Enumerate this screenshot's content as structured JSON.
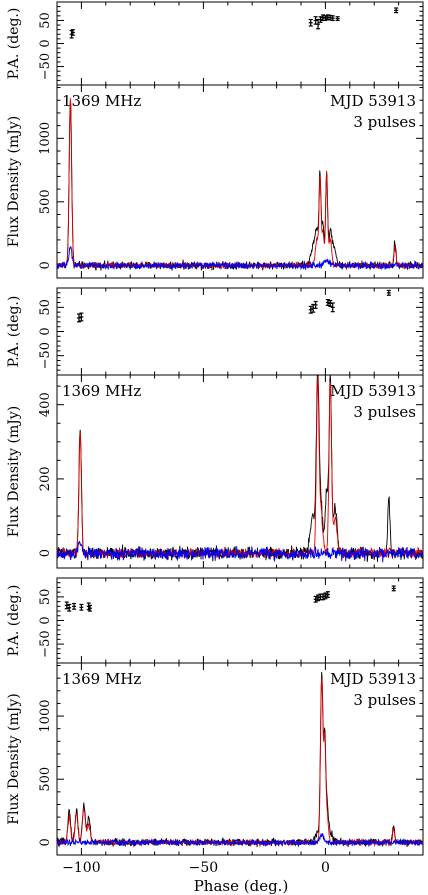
{
  "chart_data": {
    "type": "line",
    "xlabel": "Phase (deg.)",
    "xlim": [
      -110,
      40
    ],
    "x_ticks": [
      -100,
      -50,
      0
    ],
    "series_colors": {
      "total": "#000000",
      "linear": "#e00000",
      "circular": "#0000ee"
    },
    "panels": [
      {
        "freq_label": "1369 MHz",
        "mjd_label": "MJD 53913",
        "pulses_label": "3 pulses",
        "pa": {
          "ylabel": "P.A. (deg.)",
          "ylim": [
            -90,
            90
          ],
          "y_ticks": [
            -50,
            0,
            50
          ],
          "points": [
            {
              "x": -104,
              "y": 20,
              "err": 8
            },
            {
              "x": -103.5,
              "y": 24,
              "err": 6
            },
            {
              "x": -6,
              "y": 45,
              "err": 7
            },
            {
              "x": -4,
              "y": 50,
              "err": 8
            },
            {
              "x": -3,
              "y": 42,
              "err": 10
            },
            {
              "x": -2,
              "y": 52,
              "err": 6
            },
            {
              "x": -1,
              "y": 56,
              "err": 6
            },
            {
              "x": 0,
              "y": 55,
              "err": 5
            },
            {
              "x": 1,
              "y": 57,
              "err": 5
            },
            {
              "x": 2,
              "y": 56,
              "err": 5
            },
            {
              "x": 3,
              "y": 55,
              "err": 5
            },
            {
              "x": 5,
              "y": 54,
              "err": 4
            },
            {
              "x": 29,
              "y": 72,
              "err": 5
            }
          ]
        },
        "flux": {
          "ylabel": "Flux Density (mJy)",
          "ylim": [
            -100,
            1420
          ],
          "y_ticks": [
            0,
            500,
            1000
          ],
          "total": [
            {
              "x": -104.5,
              "y": 1330,
              "w": 0.5
            },
            {
              "x": -5,
              "y": 150,
              "w": 1.0
            },
            {
              "x": -3.5,
              "y": 250,
              "w": 0.6
            },
            {
              "x": -2.2,
              "y": 700,
              "w": 0.4
            },
            {
              "x": -1.0,
              "y": 320,
              "w": 0.5
            },
            {
              "x": 0.5,
              "y": 720,
              "w": 0.4
            },
            {
              "x": 2.0,
              "y": 250,
              "w": 0.6
            },
            {
              "x": 3.5,
              "y": 150,
              "w": 0.8
            },
            {
              "x": 28.5,
              "y": 190,
              "w": 0.4
            }
          ],
          "linear": [
            {
              "x": -104.5,
              "y": 1320,
              "w": 0.5
            },
            {
              "x": -3.5,
              "y": 200,
              "w": 0.6
            },
            {
              "x": -2.2,
              "y": 680,
              "w": 0.4
            },
            {
              "x": -1.0,
              "y": 250,
              "w": 0.5
            },
            {
              "x": 0.5,
              "y": 730,
              "w": 0.4
            },
            {
              "x": 2.0,
              "y": 200,
              "w": 0.6
            },
            {
              "x": 28.5,
              "y": 150,
              "w": 0.4
            }
          ],
          "circular": [
            {
              "x": -104.5,
              "y": 150,
              "w": 0.6
            },
            {
              "x": 0.5,
              "y": 40,
              "w": 1.0
            }
          ],
          "noise": [
            25,
            18,
            22
          ]
        }
      },
      {
        "freq_label": "1369 MHz",
        "mjd_label": "MJD 53913",
        "pulses_label": "3 pulses",
        "pa": {
          "ylabel": "P.A. (deg.)",
          "ylim": [
            -90,
            90
          ],
          "y_ticks": [
            -50,
            0,
            50
          ],
          "points": [
            {
              "x": -101,
              "y": 28,
              "err": 8
            },
            {
              "x": -100,
              "y": 30,
              "err": 8
            },
            {
              "x": -6,
              "y": 45,
              "err": 7
            },
            {
              "x": -5,
              "y": 48,
              "err": 8
            },
            {
              "x": -4,
              "y": 55,
              "err": 7
            },
            {
              "x": 1,
              "y": 60,
              "err": 6
            },
            {
              "x": 2,
              "y": 58,
              "err": 6
            },
            {
              "x": 3,
              "y": 50,
              "err": 9
            },
            {
              "x": 26,
              "y": 80,
              "err": 5
            }
          ]
        },
        "flux": {
          "ylabel": "Flux Density (mJy)",
          "ylim": [
            -40,
            480
          ],
          "y_ticks": [
            0,
            200,
            400
          ],
          "total": [
            {
              "x": -100.5,
              "y": 340,
              "w": 0.5
            },
            {
              "x": -5,
              "y": 100,
              "w": 1.2
            },
            {
              "x": -3.2,
              "y": 440,
              "w": 0.5
            },
            {
              "x": -2,
              "y": 150,
              "w": 0.8
            },
            {
              "x": 0.5,
              "y": 160,
              "w": 0.6
            },
            {
              "x": 2.0,
              "y": 460,
              "w": 0.5
            },
            {
              "x": 4,
              "y": 120,
              "w": 0.8
            },
            {
              "x": 26,
              "y": 160,
              "w": 0.4
            }
          ],
          "linear": [
            {
              "x": -100.5,
              "y": 330,
              "w": 0.5
            },
            {
              "x": -3.2,
              "y": 430,
              "w": 0.5
            },
            {
              "x": -2,
              "y": 120,
              "w": 0.8
            },
            {
              "x": 2.0,
              "y": 465,
              "w": 0.5
            },
            {
              "x": 4,
              "y": 90,
              "w": 0.8
            }
          ],
          "circular": [
            {
              "x": -100.5,
              "y": 30,
              "w": 0.8
            }
          ],
          "noise": [
            14,
            10,
            14
          ]
        }
      },
      {
        "freq_label": "1369 MHz",
        "mjd_label": "MJD 53913",
        "pulses_label": "3 pulses",
        "pa": {
          "ylabel": "P.A. (deg.)",
          "ylim": [
            -90,
            90
          ],
          "y_ticks": [
            -50,
            0,
            50
          ],
          "points": [
            {
              "x": -106,
              "y": 32,
              "err": 7
            },
            {
              "x": -105,
              "y": 27,
              "err": 7
            },
            {
              "x": -103,
              "y": 30,
              "err": 6
            },
            {
              "x": -100,
              "y": 28,
              "err": 6
            },
            {
              "x": -97,
              "y": 30,
              "err": 7
            },
            {
              "x": -96.5,
              "y": 26,
              "err": 6
            },
            {
              "x": -4,
              "y": 45,
              "err": 6
            },
            {
              "x": -3,
              "y": 48,
              "err": 6
            },
            {
              "x": -2,
              "y": 50,
              "err": 6
            },
            {
              "x": -1,
              "y": 50,
              "err": 6
            },
            {
              "x": 0,
              "y": 52,
              "err": 6
            },
            {
              "x": 1,
              "y": 55,
              "err": 6
            },
            {
              "x": 28,
              "y": 68,
              "err": 5
            }
          ]
        },
        "flux": {
          "ylabel": "Flux Density (mJy)",
          "ylim": [
            -100,
            1420
          ],
          "y_ticks": [
            0,
            500,
            1000
          ],
          "total": [
            {
              "x": -105,
              "y": 250,
              "w": 0.6
            },
            {
              "x": -102,
              "y": 250,
              "w": 0.6
            },
            {
              "x": -99,
              "y": 290,
              "w": 0.6
            },
            {
              "x": -97,
              "y": 200,
              "w": 0.6
            },
            {
              "x": -3,
              "y": 80,
              "w": 1.2
            },
            {
              "x": -1.5,
              "y": 1300,
              "w": 0.5
            },
            {
              "x": -0.3,
              "y": 700,
              "w": 0.4
            },
            {
              "x": 0.5,
              "y": 300,
              "w": 0.6
            },
            {
              "x": 2,
              "y": 80,
              "w": 1.0
            },
            {
              "x": 28,
              "y": 140,
              "w": 0.4
            }
          ],
          "linear": [
            {
              "x": -105,
              "y": 200,
              "w": 0.6
            },
            {
              "x": -102,
              "y": 220,
              "w": 0.6
            },
            {
              "x": -99,
              "y": 260,
              "w": 0.6
            },
            {
              "x": -97,
              "y": 150,
              "w": 0.6
            },
            {
              "x": -1.5,
              "y": 1290,
              "w": 0.5
            },
            {
              "x": -0.3,
              "y": 690,
              "w": 0.4
            },
            {
              "x": 0.5,
              "y": 250,
              "w": 0.6
            },
            {
              "x": 28,
              "y": 120,
              "w": 0.4
            }
          ],
          "circular": [
            {
              "x": -1.5,
              "y": 60,
              "w": 0.8
            }
          ],
          "noise": [
            25,
            18,
            20
          ]
        }
      }
    ]
  }
}
